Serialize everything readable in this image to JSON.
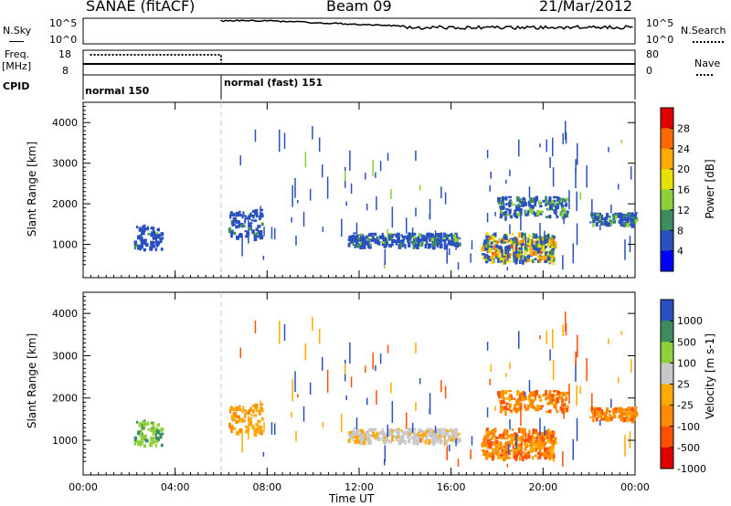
{
  "header": {
    "station": "SANAE (fitACF)",
    "beam": "Beam 09",
    "date": "21/Mar/2012"
  },
  "strips": {
    "nsky_label": "N.Sky",
    "nsearch_label": "N.Search",
    "nsky_ticks": [
      "10^5",
      "10^0"
    ],
    "nsearch_ticks": [
      "10^5",
      "10^0"
    ],
    "freq_label": "Freq.",
    "freq_unit": "[MHz]",
    "freq_ticks": [
      "18",
      "8"
    ],
    "nave_label": "Nave",
    "nave_ticks": [
      "80",
      "0"
    ],
    "cpid_label": "CPID",
    "cpid_modes": [
      {
        "name": "normal 150",
        "start_hour": 0,
        "end_hour": 6
      },
      {
        "name": "normal (fast) 151",
        "start_hour": 6,
        "end_hour": 24
      }
    ]
  },
  "chart_data": [
    {
      "type": "heatmap",
      "panel": "power",
      "ylabel": "Slant Range [km]",
      "xlabel": "Time UT",
      "ylim": [
        180,
        4500
      ],
      "y_ticks": [
        1000,
        2000,
        3000,
        4000
      ],
      "x_tick_labels": [
        "00:00",
        "04:00",
        "08:00",
        "12:00",
        "16:00",
        "20:00",
        "00:00"
      ],
      "x_hours": [
        0,
        4,
        8,
        12,
        16,
        20,
        24
      ],
      "colorbar_label": "Power [dB]",
      "colorbar_ticks": [
        "28",
        "24",
        "20",
        "16",
        "12",
        "8",
        "4"
      ],
      "colorbar_colors": [
        "#e00000",
        "#ff6a00",
        "#ffaa00",
        "#e8e000",
        "#8cd03c",
        "#3d8c60",
        "#2a50c0",
        "#0000ff"
      ],
      "echo_regions": [
        {
          "t_start": 2.2,
          "t_end": 3.4,
          "r_start": 900,
          "r_end": 1500,
          "level": "weak"
        },
        {
          "t_start": 6.3,
          "t_end": 7.8,
          "r_start": 1200,
          "r_end": 1900,
          "level": "weak"
        },
        {
          "t_start": 11.5,
          "t_end": 16.3,
          "r_start": 1000,
          "r_end": 1300,
          "level": "weak"
        },
        {
          "t_start": 17.3,
          "t_end": 20.5,
          "r_start": 600,
          "r_end": 1300,
          "level": "strong"
        },
        {
          "t_start": 18.0,
          "t_end": 21.0,
          "r_start": 1700,
          "r_end": 2200,
          "level": "medium"
        },
        {
          "t_start": 22.0,
          "t_end": 24.0,
          "r_start": 1500,
          "r_end": 1800,
          "level": "medium"
        }
      ]
    },
    {
      "type": "heatmap",
      "panel": "velocity",
      "ylabel": "Slant Range [km]",
      "xlabel": "Time UT",
      "ylim": [
        180,
        4500
      ],
      "y_ticks": [
        1000,
        2000,
        3000,
        4000
      ],
      "x_tick_labels": [
        "00:00",
        "04:00",
        "08:00",
        "12:00",
        "16:00",
        "20:00",
        "00:00"
      ],
      "x_hours": [
        0,
        4,
        8,
        12,
        16,
        20,
        24
      ],
      "colorbar_label": "Velocity [m s-1]",
      "colorbar_ticks": [
        "1000",
        "500",
        "100",
        "25",
        "-25",
        "-100",
        "-500",
        "-1000"
      ],
      "colorbar_colors": [
        "#2a50c0",
        "#3d8c60",
        "#8cd03c",
        "#c8c8c8",
        "#ffaa00",
        "#ff8c00",
        "#ff5000",
        "#e00000"
      ],
      "echo_regions": [
        {
          "t_start": 2.2,
          "t_end": 3.4,
          "r_start": 900,
          "r_end": 1500,
          "v": 100
        },
        {
          "t_start": 6.3,
          "t_end": 7.8,
          "r_start": 1200,
          "r_end": 1900,
          "v": -100
        },
        {
          "t_start": 11.5,
          "t_end": 16.3,
          "r_start": 1000,
          "r_end": 1300,
          "v": 0
        },
        {
          "t_start": 17.3,
          "t_end": 20.5,
          "r_start": 600,
          "r_end": 1300,
          "v": -300
        },
        {
          "t_start": 18.0,
          "t_end": 21.0,
          "r_start": 1700,
          "r_end": 2200,
          "v": -500
        },
        {
          "t_start": 22.0,
          "t_end": 24.0,
          "r_start": 1500,
          "r_end": 1800,
          "v": -500
        }
      ]
    }
  ]
}
